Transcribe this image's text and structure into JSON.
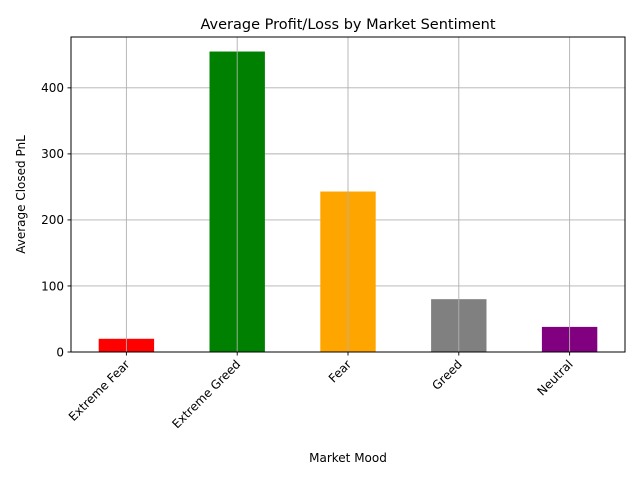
{
  "chart_data": {
    "type": "bar",
    "title": "Average Profit/Loss by Market Sentiment",
    "xlabel": "Market Mood",
    "ylabel": "Average Closed PnL",
    "categories": [
      "Extreme Fear",
      "Extreme Greed",
      "Fear",
      "Greed",
      "Neutral"
    ],
    "values": [
      20,
      455,
      243,
      80,
      38
    ],
    "colors": [
      "#ff0000",
      "#008000",
      "#ffa500",
      "#808080",
      "#800080"
    ],
    "ylim": [
      0,
      477
    ],
    "yticks": [
      0,
      100,
      200,
      300,
      400
    ],
    "grid": true,
    "legend": "none"
  }
}
